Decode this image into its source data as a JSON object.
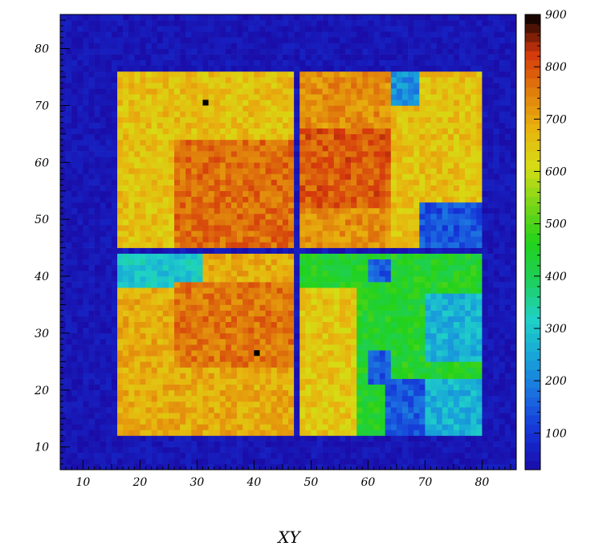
{
  "chart_data": {
    "type": "heatmap",
    "title": "",
    "xlabel": "XY",
    "ylabel": "",
    "xlim": [
      6,
      86
    ],
    "ylim": [
      6,
      86
    ],
    "x_ticks": [
      10,
      20,
      30,
      40,
      50,
      60,
      70,
      80
    ],
    "y_ticks": [
      10,
      20,
      30,
      40,
      50,
      60,
      70,
      80
    ],
    "z_range": [
      30,
      900
    ],
    "z_ticks": [
      100,
      200,
      300,
      400,
      500,
      600,
      700,
      800,
      900
    ],
    "grid": false,
    "legend": "colorbar-right",
    "colormap": [
      "#1a0ca8",
      "#1433d6",
      "#1b6ee0",
      "#18a6d8",
      "#1fd2c6",
      "#1ecf5a",
      "#23d21a",
      "#7ad618",
      "#d6dc14",
      "#e8b20e",
      "#e07c0c",
      "#d4360c",
      "#000000"
    ],
    "regions": [
      {
        "x0": 16.5,
        "x1": 47.5,
        "y0": 64.5,
        "y1": 76.5,
        "value": 660
      },
      {
        "x0": 16.5,
        "x1": 26.5,
        "y0": 45.5,
        "y1": 64.5,
        "value": 660
      },
      {
        "x0": 26.5,
        "x1": 47.5,
        "y0": 45.5,
        "y1": 64.5,
        "value": 770
      },
      {
        "x0": 48.5,
        "x1": 64.5,
        "y0": 45.5,
        "y1": 76.5,
        "value": 730
      },
      {
        "x0": 48.5,
        "x1": 64.5,
        "y0": 52.5,
        "y1": 66.5,
        "value": 790
      },
      {
        "x0": 64.5,
        "x1": 80.5,
        "y0": 45.5,
        "y1": 76.5,
        "value": 660
      },
      {
        "x0": 64.5,
        "x1": 69.5,
        "y0": 70.5,
        "y1": 76.5,
        "value": 220
      },
      {
        "x0": 69.5,
        "x1": 80.5,
        "y0": 45.5,
        "y1": 53.5,
        "value": 140
      },
      {
        "x0": 16.5,
        "x1": 47.5,
        "y0": 12.5,
        "y1": 44.5,
        "value": 690
      },
      {
        "x0": 16.5,
        "x1": 31.5,
        "y0": 38.5,
        "y1": 44.5,
        "value": 300
      },
      {
        "x0": 26.5,
        "x1": 47.5,
        "y0": 24.5,
        "y1": 39.5,
        "value": 760
      },
      {
        "x0": 48.5,
        "x1": 64.5,
        "y0": 12.5,
        "y1": 38.5,
        "value": 650
      },
      {
        "x0": 48.5,
        "x1": 58.5,
        "y0": 38.5,
        "y1": 44.5,
        "value": 450
      },
      {
        "x0": 58.5,
        "x1": 80.5,
        "y0": 12.5,
        "y1": 44.5,
        "value": 450
      },
      {
        "x0": 70.5,
        "x1": 80.5,
        "y0": 25.5,
        "y1": 37.5,
        "value": 270
      },
      {
        "x0": 63.5,
        "x1": 70.5,
        "y0": 12.5,
        "y1": 22.5,
        "value": 150
      },
      {
        "x0": 70.5,
        "x1": 80.5,
        "y0": 12.5,
        "y1": 22.5,
        "value": 270
      },
      {
        "x0": 60.5,
        "x1": 64.5,
        "y0": 39.5,
        "y1": 43.5,
        "value": 150
      },
      {
        "x0": 60.5,
        "x1": 64.5,
        "y0": 21.5,
        "y1": 27.5,
        "value": 150
      }
    ],
    "hot_pixels": [
      {
        "x": 31.5,
        "y": 70.5,
        "value": 900
      },
      {
        "x": 40.5,
        "y": 26.5,
        "value": 900
      }
    ]
  }
}
